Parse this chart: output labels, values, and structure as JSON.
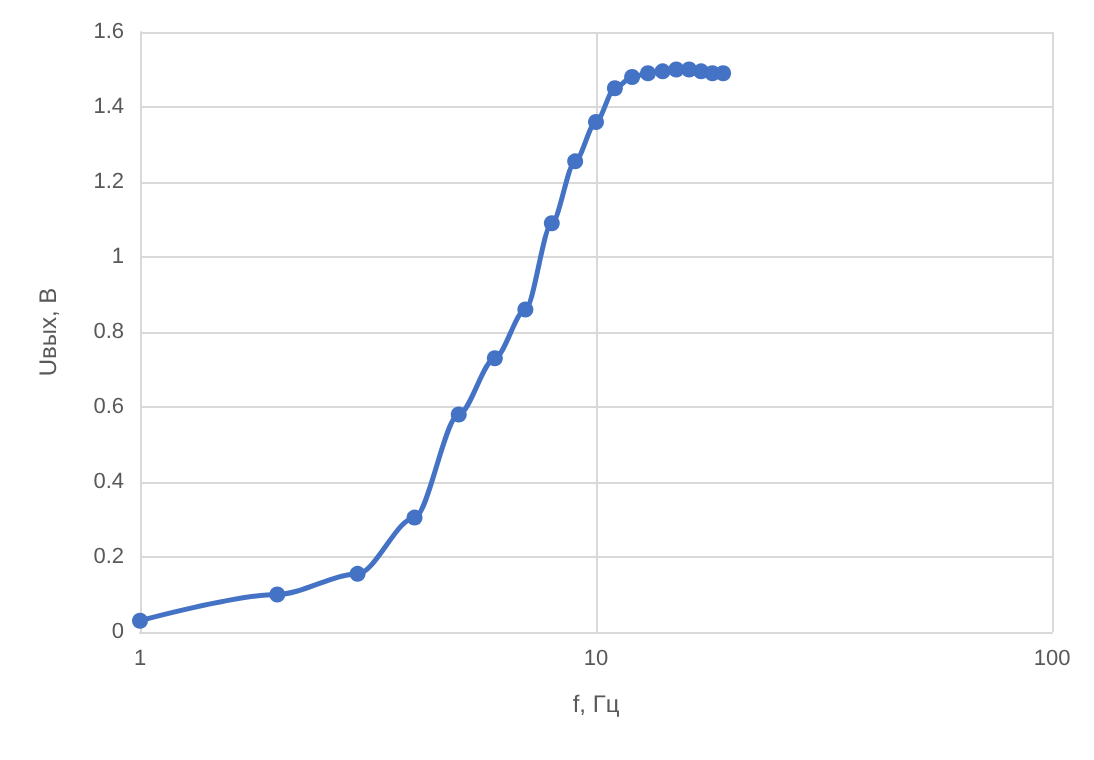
{
  "chart_data": {
    "type": "line",
    "xlabel": "f, Гц",
    "ylabel": "Uвых, В",
    "x": [
      1,
      2,
      3,
      4,
      5,
      6,
      7,
      8,
      9,
      10,
      11,
      12,
      13,
      14,
      15,
      16,
      17,
      18,
      19
    ],
    "series": [
      {
        "color": "#4472c4",
        "values": [
          0.03,
          0.1,
          0.155,
          0.305,
          0.58,
          0.73,
          0.86,
          1.09,
          1.255,
          1.36,
          1.45,
          1.48,
          1.49,
          1.495,
          1.5,
          1.5,
          1.495,
          1.49,
          1.49
        ]
      }
    ],
    "log": "x",
    "xlim": [
      1,
      100
    ],
    "xticks": [
      1,
      10,
      100
    ],
    "ylim": [
      0,
      1.6
    ],
    "yticks": [
      0,
      0.2,
      0.4,
      0.6,
      0.8,
      1,
      1.2,
      1.4,
      1.6
    ],
    "grid": true,
    "marker": "circle",
    "line_style": "solid"
  }
}
